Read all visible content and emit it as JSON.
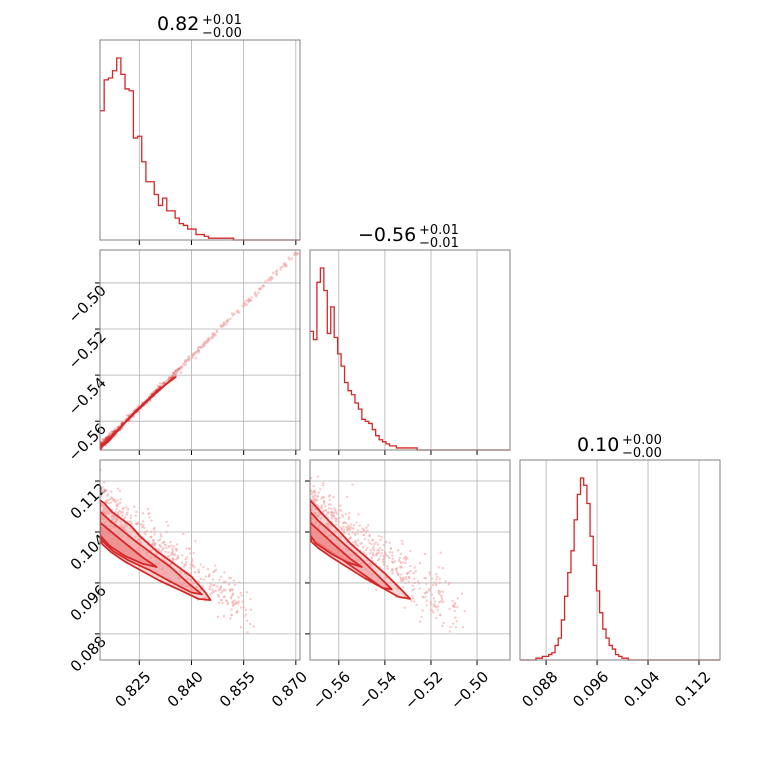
{
  "colors": {
    "series": "#d62728",
    "light": "#f4a6a6",
    "fill": "#ef8a8a"
  },
  "chart_data": [
    {
      "type": "histogram",
      "panel": "p00",
      "title": {
        "value": "0.82",
        "plus": "+0.01",
        "minus": "−0.00"
      },
      "xlim": [
        0.8137,
        0.8712
      ],
      "xticks": [
        0.825,
        0.84,
        0.855,
        0.87
      ],
      "bin_width": 0.0012,
      "bins_start": 0.8137,
      "counts": [
        71,
        88,
        89,
        93,
        100,
        91,
        83,
        82,
        56,
        57,
        43,
        32,
        32,
        25,
        19,
        23,
        16,
        16,
        12,
        9,
        8,
        6,
        6,
        3,
        3,
        2,
        1,
        1,
        1,
        1,
        1,
        1,
        0,
        0,
        0,
        0,
        0,
        0,
        0,
        0,
        0,
        0,
        0,
        0,
        0,
        0,
        0,
        0
      ]
    },
    {
      "type": "histogram",
      "panel": "p11",
      "title": {
        "value": "−0.56",
        "plus": "+0.01",
        "minus": "−0.01"
      },
      "xlim": [
        -0.5725,
        -0.4857
      ],
      "xticks": [
        -0.56,
        -0.54,
        -0.52,
        -0.5
      ],
      "bin_width": 0.0015,
      "bins_start": -0.5725,
      "counts": [
        58,
        54,
        82,
        89,
        78,
        57,
        70,
        55,
        47,
        41,
        33,
        29,
        27,
        23,
        20,
        15,
        14,
        13,
        10,
        7,
        5,
        4,
        3,
        2,
        2,
        1,
        1,
        1,
        1,
        1,
        1,
        0,
        0,
        0,
        0,
        0,
        0,
        0,
        0,
        0,
        0,
        0,
        0,
        0,
        0,
        0,
        0,
        0,
        0,
        0,
        0,
        0,
        0,
        0,
        0,
        0,
        0,
        0
      ]
    },
    {
      "type": "histogram",
      "panel": "p22",
      "title": {
        "value": "0.10",
        "plus": "+0.00",
        "minus": "−0.00"
      },
      "xlim": [
        0.0839,
        0.1153
      ],
      "xticks": [
        0.088,
        0.096,
        0.104,
        0.112
      ],
      "bin_width": 0.0005,
      "bins_start": 0.0839,
      "counts": [
        0,
        0,
        0,
        0,
        0,
        1,
        1,
        2,
        2,
        3,
        4,
        8,
        12,
        22,
        35,
        48,
        60,
        77,
        91,
        100,
        96,
        86,
        68,
        52,
        38,
        26,
        17,
        12,
        8,
        6,
        3,
        2,
        1,
        1,
        0,
        0,
        0,
        0,
        0,
        0,
        0,
        0,
        0,
        0,
        0,
        0,
        0,
        0,
        0,
        0,
        0,
        0,
        0,
        0,
        0,
        0,
        0,
        0,
        0,
        0,
        0,
        0,
        0
      ]
    },
    {
      "type": "scatter",
      "panel": "p10",
      "xlim": [
        0.8137,
        0.8712
      ],
      "ylim": [
        -0.5725,
        -0.4857
      ],
      "xticks": [
        0.825,
        0.84,
        0.855,
        0.87
      ],
      "yticks": [
        -0.56,
        -0.54,
        -0.52,
        -0.5
      ],
      "ridge": [
        [
          0.8137,
          -0.571
        ],
        [
          0.8712,
          -0.4857
        ]
      ],
      "contours": [
        {
          "name": "inner",
          "points": [
            [
              0.814,
              -0.5712
            ],
            [
              0.819,
              -0.5635
            ],
            [
              0.824,
              -0.556
            ],
            [
              0.83,
              -0.5475
            ],
            [
              0.835,
              -0.541
            ],
            [
              0.8355,
              -0.5408
            ],
            [
              0.83,
              -0.547
            ],
            [
              0.823,
              -0.557
            ],
            [
              0.816,
              -0.569
            ],
            [
              0.814,
              -0.5712
            ]
          ]
        }
      ]
    },
    {
      "type": "scatter",
      "panel": "p20",
      "xlim": [
        0.8137,
        0.8712
      ],
      "ylim": [
        0.0839,
        0.1153
      ],
      "xticks": [
        0.825,
        0.84,
        0.855,
        0.87
      ],
      "yticks": [
        0.088,
        0.096,
        0.104,
        0.112
      ],
      "contours": [
        {
          "name": "outer",
          "points": [
            [
              0.8137,
              0.109
            ],
            [
              0.815,
              0.1085
            ],
            [
              0.817,
              0.1072
            ],
            [
              0.8195,
              0.1062
            ],
            [
              0.8225,
              0.105
            ],
            [
              0.8255,
              0.1032
            ],
            [
              0.83,
              0.101
            ],
            [
              0.835,
              0.099
            ],
            [
              0.84,
              0.097
            ],
            [
              0.844,
              0.0945
            ],
            [
              0.8455,
              0.0933
            ],
            [
              0.842,
              0.0935
            ],
            [
              0.837,
              0.0948
            ],
            [
              0.831,
              0.0963
            ],
            [
              0.826,
              0.0978
            ],
            [
              0.821,
              0.0993
            ],
            [
              0.817,
              0.1008
            ],
            [
              0.8145,
              0.102
            ],
            [
              0.8137,
              0.1025
            ]
          ]
        },
        {
          "name": "mid",
          "points": [
            [
              0.8137,
              0.1072
            ],
            [
              0.8165,
              0.1058
            ],
            [
              0.8195,
              0.1045
            ],
            [
              0.824,
              0.1025
            ],
            [
              0.829,
              0.1005
            ],
            [
              0.834,
              0.0985
            ],
            [
              0.839,
              0.096
            ],
            [
              0.843,
              0.0942
            ],
            [
              0.84,
              0.0945
            ],
            [
              0.834,
              0.0962
            ],
            [
              0.828,
              0.098
            ],
            [
              0.822,
              0.0995
            ],
            [
              0.8175,
              0.101
            ],
            [
              0.8145,
              0.1025
            ],
            [
              0.8137,
              0.1035
            ]
          ]
        },
        {
          "name": "inner",
          "points": [
            [
              0.8137,
              0.1055
            ],
            [
              0.817,
              0.104
            ],
            [
              0.821,
              0.1022
            ],
            [
              0.826,
              0.1
            ],
            [
              0.83,
              0.0985
            ],
            [
              0.826,
              0.099
            ],
            [
              0.821,
              0.1002
            ],
            [
              0.8165,
              0.1018
            ],
            [
              0.8137,
              0.1035
            ]
          ]
        }
      ]
    },
    {
      "type": "scatter",
      "panel": "p21",
      "xlim": [
        -0.5725,
        -0.4857
      ],
      "ylim": [
        0.0839,
        0.1153
      ],
      "xticks": [
        -0.56,
        -0.54,
        -0.52,
        -0.5
      ],
      "yticks": [
        0.088,
        0.096,
        0.104,
        0.112
      ],
      "contours": [
        {
          "name": "outer",
          "points": [
            [
              -0.5725,
              0.109
            ],
            [
              -0.5705,
              0.1082
            ],
            [
              -0.568,
              0.1072
            ],
            [
              -0.565,
              0.106
            ],
            [
              -0.56,
              0.1042
            ],
            [
              -0.555,
              0.1022
            ],
            [
              -0.548,
              0.1
            ],
            [
              -0.54,
              0.0975
            ],
            [
              -0.533,
              0.095
            ],
            [
              -0.529,
              0.0935
            ],
            [
              -0.534,
              0.0938
            ],
            [
              -0.541,
              0.0952
            ],
            [
              -0.549,
              0.0968
            ],
            [
              -0.556,
              0.0984
            ],
            [
              -0.563,
              0.1
            ],
            [
              -0.569,
              0.1015
            ],
            [
              -0.572,
              0.1025
            ]
          ]
        },
        {
          "name": "mid",
          "points": [
            [
              -0.5725,
              0.1072
            ],
            [
              -0.569,
              0.1058
            ],
            [
              -0.564,
              0.1042
            ],
            [
              -0.558,
              0.1022
            ],
            [
              -0.551,
              0.1
            ],
            [
              -0.544,
              0.0975
            ],
            [
              -0.537,
              0.095
            ],
            [
              -0.541,
              0.0952
            ],
            [
              -0.548,
              0.097
            ],
            [
              -0.556,
              0.099
            ],
            [
              -0.563,
              0.1008
            ],
            [
              -0.57,
              0.1025
            ],
            [
              -0.5725,
              0.1035
            ]
          ]
        },
        {
          "name": "inner",
          "points": [
            [
              -0.5725,
              0.1055
            ],
            [
              -0.568,
              0.104
            ],
            [
              -0.562,
              0.102
            ],
            [
              -0.555,
              0.0998
            ],
            [
              -0.55,
              0.0985
            ],
            [
              -0.556,
              0.0992
            ],
            [
              -0.563,
              0.1005
            ],
            [
              -0.57,
              0.1022
            ],
            [
              -0.5725,
              0.1035
            ]
          ]
        }
      ]
    }
  ]
}
